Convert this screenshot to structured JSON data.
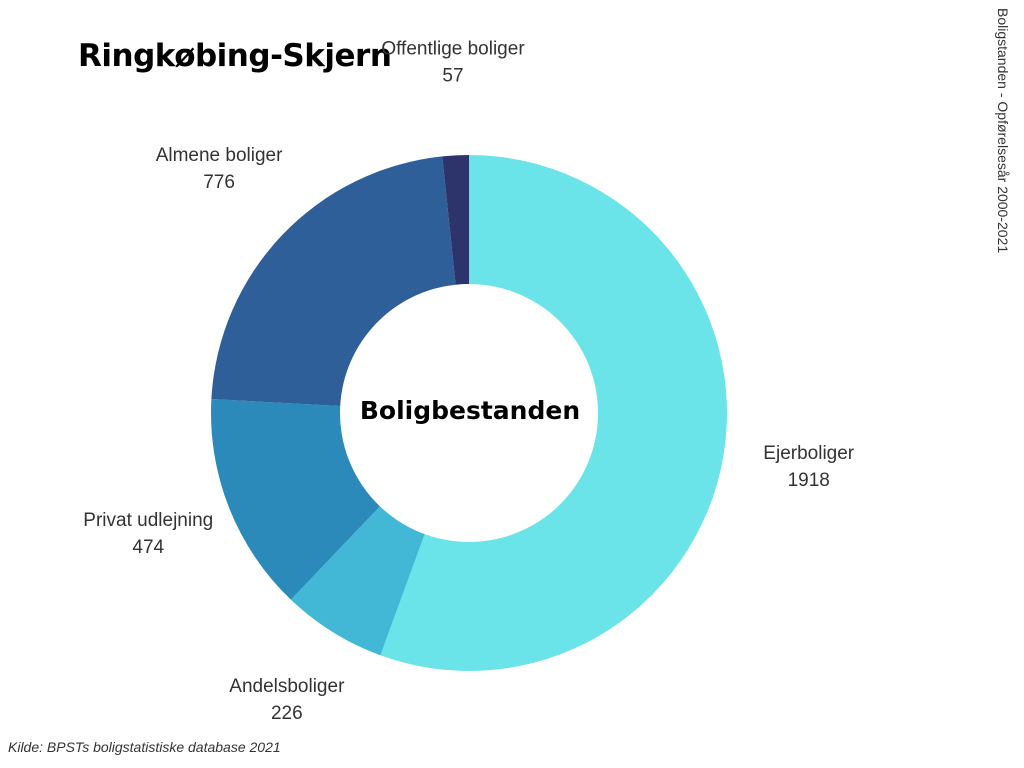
{
  "title": "Ringkøbing-Skjern",
  "side_note": "Boligstanden - Opførelsesår 2000-2021",
  "source": "Kilde: BPSTs boligstatistiske database 2021",
  "chart_data": {
    "type": "pie",
    "variant": "donut",
    "center_label": "Boligbestanden",
    "slices": [
      {
        "label": "Ejerboliger",
        "value": 1918,
        "color": "#6ae4e8"
      },
      {
        "label": "Andelsboliger",
        "value": 226,
        "color": "#42b8d6"
      },
      {
        "label": "Privat udlejning",
        "value": 474,
        "color": "#2b8aba"
      },
      {
        "label": "Almene boliger",
        "value": 776,
        "color": "#2e5f98"
      },
      {
        "label": "Offentlige boliger",
        "value": 57,
        "color": "#2d336b"
      }
    ],
    "legend": "none (labels placed outside slices)"
  }
}
